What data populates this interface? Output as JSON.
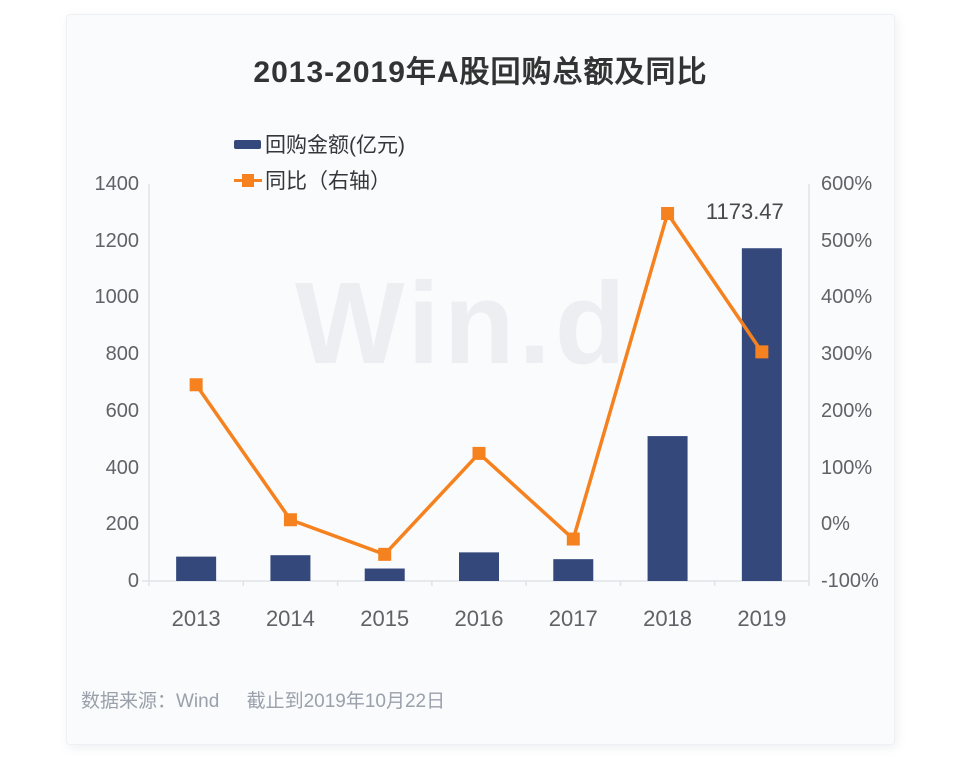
{
  "watermark": {
    "text": "Win.d",
    "color": "#eceef2"
  },
  "footer": {
    "source": "数据来源：Wind",
    "asof": "截止到2019年10月22日"
  },
  "chart_data": {
    "type": "combo-bar-line",
    "title": "2013-2019年A股回购总额及同比",
    "categories": [
      "2013",
      "2014",
      "2015",
      "2016",
      "2017",
      "2018",
      "2019"
    ],
    "series": [
      {
        "name": "回购金额(亿元)",
        "type": "bar",
        "axis": "left",
        "color": "#34487c",
        "values": [
          86,
          91,
          44,
          101,
          77,
          511,
          1173.47
        ]
      },
      {
        "name": "同比（右轴）",
        "type": "line",
        "axis": "right",
        "unit": "%",
        "color": "#f5821f",
        "values": [
          246,
          8,
          -53,
          125,
          -26,
          548,
          304
        ]
      }
    ],
    "left_axis": {
      "min": 0,
      "max": 1400,
      "step": 200,
      "labels": [
        "0",
        "200",
        "400",
        "600",
        "800",
        "1000",
        "1200",
        "1400"
      ]
    },
    "right_axis": {
      "min": -100,
      "max": 600,
      "step": 100,
      "labels": [
        "-100%",
        "0%",
        "100%",
        "200%",
        "300%",
        "400%",
        "500%",
        "600%"
      ]
    },
    "annotation": {
      "text": "1173.47",
      "category": "2019",
      "series": "回购金额(亿元)"
    },
    "grid": false,
    "legend_position": "top-left",
    "axis_line_color": "#dfe3e8",
    "label_color": "#5f6368"
  }
}
